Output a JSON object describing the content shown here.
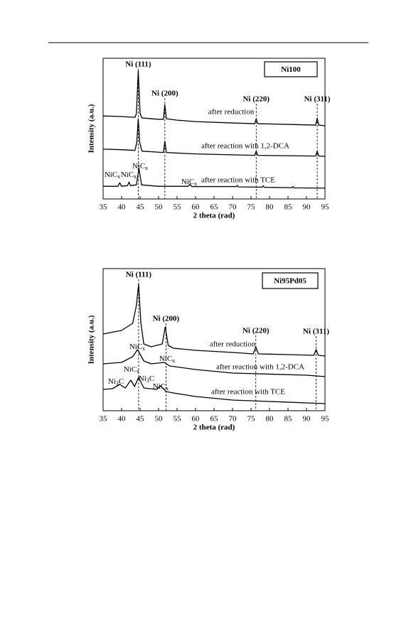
{
  "chart_data": [
    {
      "type": "line",
      "title_box": "Ni100",
      "x_label": "2 theta (rad)",
      "y_label": "Intensity (a.u.)",
      "xlim": [
        35,
        95
      ],
      "xticks": [
        35,
        40,
        45,
        50,
        55,
        60,
        65,
        70,
        75,
        80,
        85,
        90,
        95
      ],
      "ylim": [
        0,
        100
      ],
      "series": [
        {
          "name": "after reduction",
          "color": "#000000",
          "x": [
            35,
            40,
            43.6,
            44.0,
            44.5,
            45.0,
            45.5,
            50,
            51.3,
            51.7,
            52.1,
            55,
            60,
            70,
            76,
            76.4,
            76.8,
            85,
            92.5,
            92.9,
            93.3,
            95
          ],
          "values": [
            59,
            58.6,
            58,
            60.6,
            91,
            60.6,
            57.6,
            56.6,
            56.6,
            67,
            57,
            56,
            55,
            54,
            53.5,
            57,
            53.5,
            53,
            52.5,
            57.5,
            52.5,
            52
          ]
        },
        {
          "name": "after reaction with 1,2-DCA",
          "color": "#000000",
          "x": [
            35,
            40,
            43.6,
            44.1,
            44.5,
            44.9,
            45.5,
            51.3,
            51.7,
            52.1,
            60,
            76,
            76.4,
            76.8,
            92.5,
            92.9,
            93.3,
            95
          ],
          "values": [
            35.4,
            35,
            34.5,
            40,
            57,
            40,
            34,
            33,
            41,
            33,
            32,
            31,
            34,
            31,
            30.5,
            34,
            30.5,
            30.3
          ]
        },
        {
          "name": "after reaction with TCE",
          "color": "#000000",
          "x": [
            35,
            39,
            39.5,
            40,
            41.6,
            42,
            42.4,
            44,
            44.7,
            45.4,
            50,
            58,
            58.5,
            59,
            71,
            71.3,
            71.6,
            78,
            78.3,
            78.6,
            86,
            86.3,
            86.6,
            95
          ],
          "values": [
            9,
            9,
            11.5,
            9,
            9.5,
            12,
            9.5,
            10,
            21.5,
            10,
            9,
            9,
            10.5,
            8.8,
            8.8,
            9.6,
            8.6,
            8.4,
            9.3,
            8.3,
            8,
            8.8,
            7.9,
            7.7
          ]
        }
      ],
      "peaks": [
        {
          "label": "Ni (111)",
          "x": 44.5
        },
        {
          "label": "Ni (200)",
          "x": 51.7
        },
        {
          "label": "Ni (220)",
          "x": 76.4
        },
        {
          "label": "Ni (311)",
          "x": 92.9
        }
      ],
      "annotations": [
        "NiCx",
        "NiCx",
        "NiCx",
        "NiCx"
      ]
    },
    {
      "type": "line",
      "title_box": "Ni95Pd05",
      "x_label": "2 theta (rad)",
      "y_label": "Intensity (a.u.)",
      "xlim": [
        35,
        95
      ],
      "xticks": [
        35,
        40,
        45,
        50,
        55,
        60,
        65,
        70,
        75,
        80,
        85,
        90,
        95
      ],
      "ylim": [
        0,
        100
      ],
      "series": [
        {
          "name": "after reduction",
          "color": "#000000",
          "x": [
            35,
            40,
            43,
            44,
            44.6,
            45.2,
            46,
            48,
            51,
            51.8,
            52.6,
            54,
            60,
            70,
            75.6,
            76.3,
            77,
            85,
            92,
            92.6,
            93.2,
            95
          ],
          "values": [
            54,
            56.5,
            61.5,
            74,
            89,
            62,
            47,
            45,
            47,
            59,
            46,
            44,
            42.5,
            41,
            40,
            45,
            40,
            39.5,
            39,
            43,
            39,
            38.5
          ]
        },
        {
          "name": "after reaction with 1,2-DCA",
          "color": "#000000",
          "x": [
            35,
            40,
            43,
            44.3,
            46,
            48,
            51.5,
            53,
            60,
            70,
            90,
            95
          ],
          "values": [
            33,
            34,
            38,
            43,
            35,
            33,
            34,
            31.5,
            29,
            26.5,
            25,
            24
          ]
        },
        {
          "name": "after reaction with TCE",
          "color": "#000000",
          "x": [
            35,
            37.5,
            39.5,
            41,
            42.5,
            43.5,
            44.6,
            46,
            49.5,
            50.5,
            52,
            54,
            60,
            70,
            80,
            95
          ],
          "values": [
            15,
            15.5,
            18.5,
            16,
            21.5,
            17,
            23.5,
            16,
            15,
            17.5,
            13.5,
            12.5,
            10,
            7.5,
            6.5,
            5
          ]
        }
      ],
      "peaks": [
        {
          "label": "Ni (111)",
          "x": 44.6
        },
        {
          "label": "Ni (200)",
          "x": 52.0
        },
        {
          "label": "Ni (220)",
          "x": 76.3
        },
        {
          "label": "Ni (311)",
          "x": 92.6
        }
      ],
      "annotations": [
        "NiCx",
        "NiCx",
        "NiCx",
        "Ni3C",
        "Ni3C",
        "NiCx"
      ]
    }
  ]
}
